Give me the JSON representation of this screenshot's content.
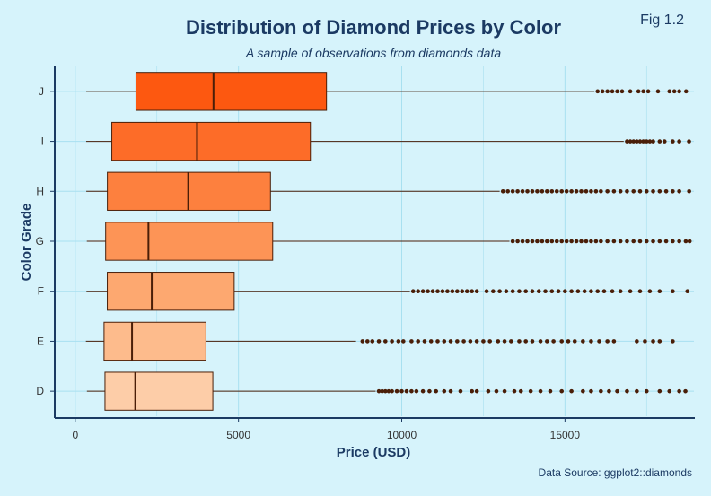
{
  "chart_data": {
    "type": "boxplot",
    "orientation": "horizontal",
    "title": "Distribution of Diamond Prices by Color",
    "subtitle": "A sample of observations from diamonds data",
    "tag": "Fig 1.2",
    "caption": "Data Source: ggplot2::diamonds",
    "xlabel": "Price (USD)",
    "ylabel": "Color Grade",
    "xlim": [
      -600,
      18950
    ],
    "x_ticks": [
      0,
      5000,
      10000,
      15000
    ],
    "x_tick_labels": [
      "0",
      "5000",
      "10000",
      "15000"
    ],
    "grid": true,
    "legend": "none",
    "colors": {
      "background": "#d6f3fb",
      "grid": "#a8e0f0",
      "axis": "#1b3a63",
      "outlier": "#4a1e08",
      "box_edge": "#4a1e08"
    },
    "categories": [
      "D",
      "E",
      "F",
      "G",
      "H",
      "I",
      "J"
    ],
    "boxes": [
      {
        "category": "D",
        "color": "#fdcda8",
        "whisker_low": 357,
        "q1": 911,
        "median": 1838,
        "q3": 4214,
        "whisker_high": 9200,
        "outliers": [
          9300,
          9400,
          9500,
          9600,
          9700,
          9850,
          10000,
          10150,
          10300,
          10450,
          10650,
          10850,
          11050,
          11300,
          11500,
          11800,
          12150,
          12300,
          12650,
          12900,
          13150,
          13450,
          13650,
          13950,
          14250,
          14550,
          14900,
          15200,
          15550,
          15800,
          16100,
          16350,
          16600,
          16900,
          17200,
          17500,
          17900,
          18200,
          18500,
          18690
        ]
      },
      {
        "category": "E",
        "color": "#fdbb8c",
        "whisker_low": 326,
        "q1": 882,
        "median": 1739,
        "q3": 4003,
        "whisker_high": 8600,
        "outliers": [
          8800,
          8950,
          9100,
          9300,
          9500,
          9700,
          9900,
          10050,
          10300,
          10500,
          10700,
          10900,
          11100,
          11300,
          11500,
          11700,
          11900,
          12100,
          12300,
          12500,
          12700,
          12950,
          13150,
          13350,
          13600,
          13800,
          14000,
          14250,
          14450,
          14650,
          14900,
          15100,
          15300,
          15550,
          15800,
          16050,
          16300,
          16500,
          17200,
          17450,
          17700,
          17900,
          18300
        ]
      },
      {
        "category": "F",
        "color": "#fda870",
        "whisker_low": 342,
        "q1": 982,
        "median": 2344,
        "q3": 4868,
        "whisker_high": 10250,
        "outliers": [
          10350,
          10500,
          10650,
          10800,
          10950,
          11100,
          11250,
          11400,
          11550,
          11700,
          11850,
          12000,
          12150,
          12300,
          12600,
          12800,
          13000,
          13200,
          13400,
          13600,
          13800,
          14000,
          14200,
          14400,
          14600,
          14800,
          15000,
          15200,
          15400,
          15600,
          15800,
          16000,
          16200,
          16450,
          16700,
          17000,
          17300,
          17600,
          17900,
          18300,
          18750
        ]
      },
      {
        "category": "G",
        "color": "#fd9456",
        "whisker_low": 354,
        "q1": 931,
        "median": 2242,
        "q3": 6048,
        "whisker_high": 13300,
        "outliers": [
          13400,
          13550,
          13700,
          13850,
          14000,
          14150,
          14300,
          14450,
          14600,
          14750,
          14900,
          15050,
          15200,
          15350,
          15500,
          15650,
          15800,
          15950,
          16100,
          16300,
          16500,
          16700,
          16900,
          17100,
          17300,
          17500,
          17700,
          17900,
          18100,
          18300,
          18500,
          18700,
          18818
        ]
      },
      {
        "category": "H",
        "color": "#fd803e",
        "whisker_low": 337,
        "q1": 984,
        "median": 3460,
        "q3": 5980,
        "whisker_high": 13000,
        "outliers": [
          13100,
          13250,
          13400,
          13550,
          13700,
          13850,
          14000,
          14150,
          14300,
          14450,
          14600,
          14750,
          14900,
          15050,
          15200,
          15350,
          15500,
          15650,
          15800,
          15950,
          16100,
          16300,
          16500,
          16700,
          16900,
          17100,
          17300,
          17500,
          17700,
          17900,
          18100,
          18300,
          18500,
          18803
        ]
      },
      {
        "category": "I",
        "color": "#fd6c28",
        "whisker_low": 334,
        "q1": 1120,
        "median": 3730,
        "q3": 7202,
        "whisker_high": 16800,
        "outliers": [
          16900,
          17000,
          17100,
          17200,
          17300,
          17400,
          17500,
          17600,
          17700,
          17900,
          18050,
          18300,
          18500,
          18800
        ]
      },
      {
        "category": "J",
        "color": "#fd5810",
        "whisker_low": 335,
        "q1": 1860,
        "median": 4234,
        "q3": 7695,
        "whisker_high": 15900,
        "outliers": [
          16000,
          16150,
          16300,
          16450,
          16600,
          16750,
          17000,
          17250,
          17400,
          17550,
          17850,
          18200,
          18350,
          18500,
          18710
        ]
      }
    ]
  }
}
